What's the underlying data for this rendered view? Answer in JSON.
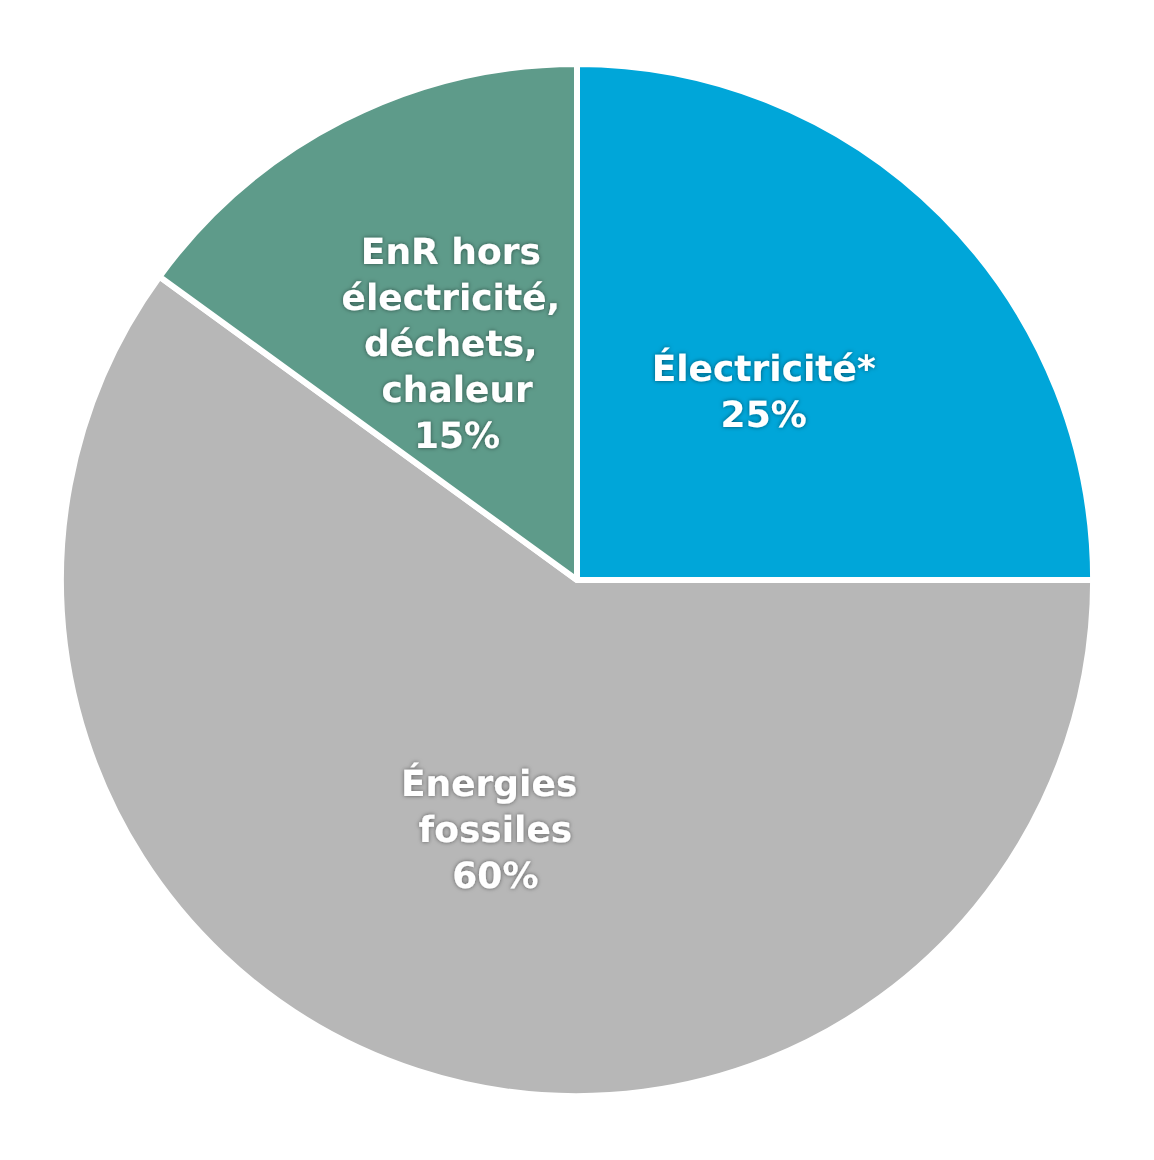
{
  "chart_data": {
    "type": "pie",
    "categories": [
      "Électricité*",
      "Énergies fossiles",
      "EnR hors électricité, déchets, chaleur"
    ],
    "values": [
      25,
      60,
      15
    ],
    "value_labels": [
      "25%",
      "60%",
      "15%"
    ],
    "colors": [
      "#00a6d9",
      "#b7b7b7",
      "#5e9b8a"
    ]
  }
}
